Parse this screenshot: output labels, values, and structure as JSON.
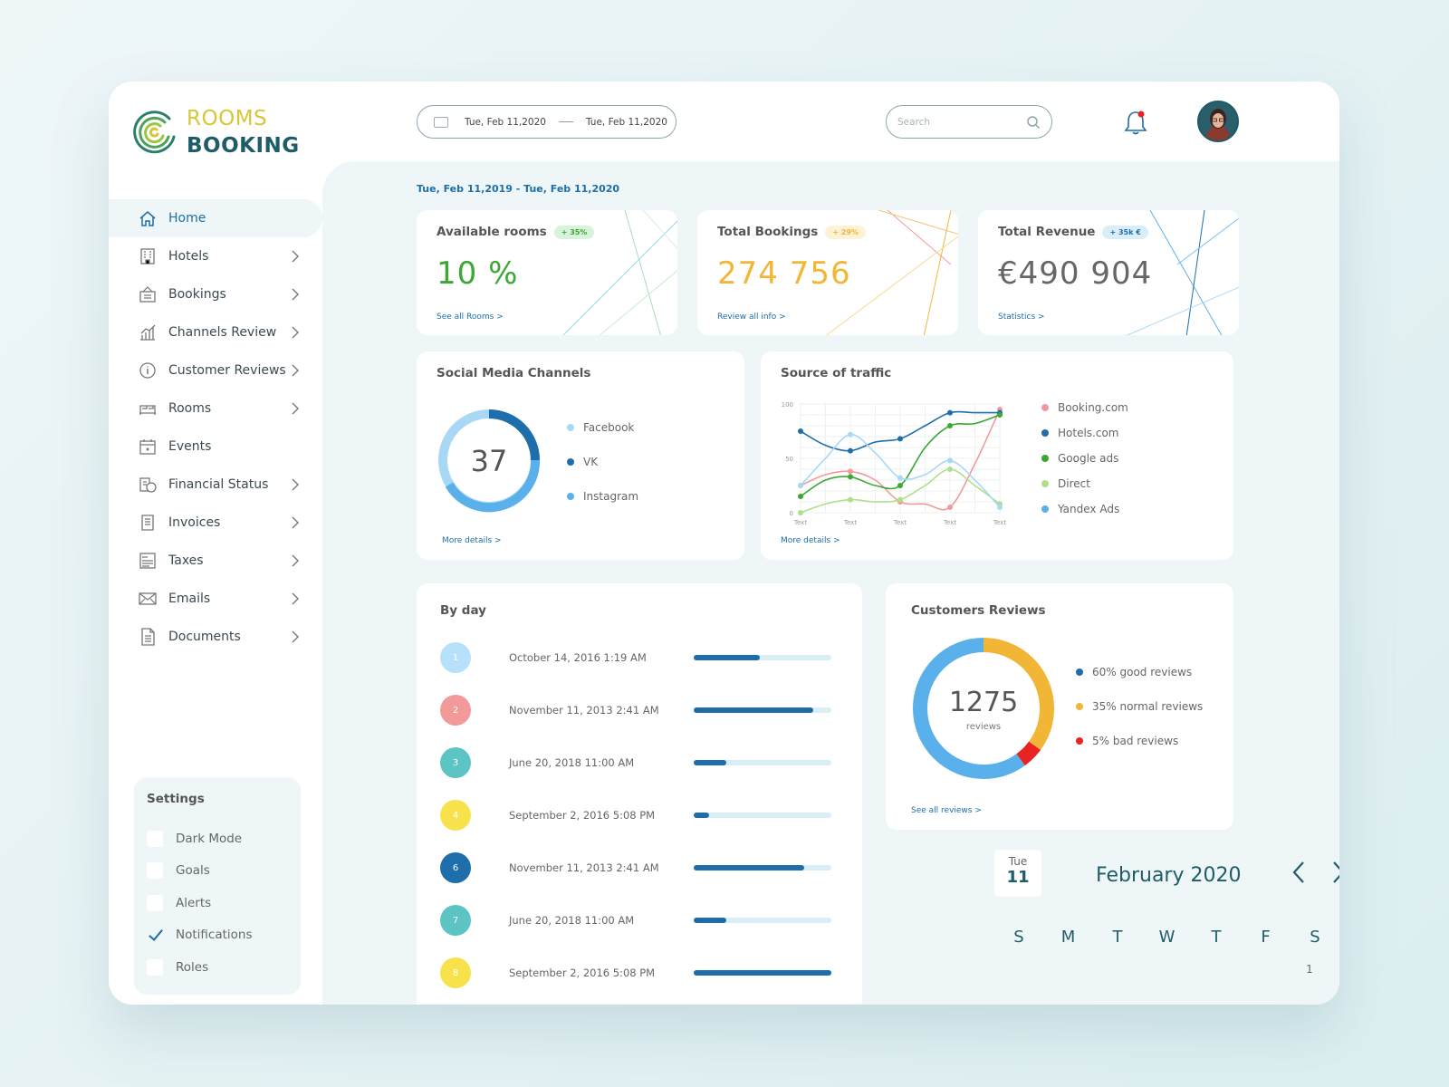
{
  "brand": {
    "line1": "ROOMS",
    "line2": "BOOKING"
  },
  "header": {
    "date_from": "Tue,  Feb 11,2020",
    "date_to": "Tue,  Feb 11,2020",
    "search_placeholder": "Search"
  },
  "sidebar": {
    "items": [
      {
        "label": "Home",
        "icon": "home-icon",
        "active": true
      },
      {
        "label": "Hotels",
        "icon": "hotel-icon"
      },
      {
        "label": "Bookings",
        "icon": "bookings-icon"
      },
      {
        "label": "Channels Review",
        "icon": "chart-icon"
      },
      {
        "label": "Customer Reviews",
        "icon": "info-icon"
      },
      {
        "label": "Rooms",
        "icon": "bed-icon"
      },
      {
        "label": "Events",
        "icon": "calendar-icon"
      },
      {
        "label": "Financial Status",
        "icon": "money-icon"
      },
      {
        "label": "Invoices",
        "icon": "invoice-icon"
      },
      {
        "label": "Taxes",
        "icon": "tax-icon"
      },
      {
        "label": "Emails",
        "icon": "mail-icon"
      },
      {
        "label": "Documents",
        "icon": "document-icon"
      }
    ]
  },
  "settings": {
    "title": "Settings",
    "options": [
      {
        "label": "Dark Mode",
        "checked": false
      },
      {
        "label": "Goals",
        "checked": false
      },
      {
        "label": "Alerts",
        "checked": false
      },
      {
        "label": "Notifications",
        "checked": true
      },
      {
        "label": "Roles",
        "checked": false
      }
    ]
  },
  "period": "Tue,  Feb 11,2019 - Tue,  Feb 11,2020",
  "kpis": [
    {
      "title": "Available rooms",
      "badge": "+ 35%",
      "value": "10 %",
      "link": "See all Rooms >",
      "color": "#3aa832",
      "badge_bg": "#d8f3dc",
      "badge_color": "#3aa832"
    },
    {
      "title": "Total Bookings",
      "badge": "+ 29%",
      "value": "274 756",
      "link": "Review all info >",
      "color": "#f2b637",
      "badge_bg": "#fdf1d6",
      "badge_color": "#f2b637"
    },
    {
      "title": "Total Revenue",
      "badge": "+ 35k €",
      "value": "€490 904",
      "link": "Statistics >",
      "color": "#666666",
      "badge_bg": "#d9eef6",
      "badge_color": "#1d6eaa"
    }
  ],
  "social": {
    "title": "Social Media Channels",
    "center_value": "37",
    "link": "More details >",
    "legend": [
      {
        "label": "Facebook",
        "color": "#a8d8f5"
      },
      {
        "label": "VK",
        "color": "#1d6eaa"
      },
      {
        "label": "Instagram",
        "color": "#5ab0ea"
      }
    ]
  },
  "traffic": {
    "title": "Source of traffic",
    "link": "More details >",
    "legend": [
      {
        "label": "Booking.com",
        "color": "#f29a9a"
      },
      {
        "label": "Hotels.com",
        "color": "#1d6eaa"
      },
      {
        "label": "Google ads",
        "color": "#3aa832"
      },
      {
        "label": "Direct",
        "color": "#aee08a"
      },
      {
        "label": "Yandex Ads",
        "color": "#5ab0ea"
      }
    ]
  },
  "chart_data": {
    "type": "line",
    "title": "Source of traffic",
    "x": [
      "Text",
      "",
      "Text",
      "",
      "Text",
      "",
      "Text",
      "",
      "Text"
    ],
    "ylim": [
      0,
      100
    ],
    "yticks": [
      0,
      50,
      100
    ],
    "grid": true,
    "series": [
      {
        "name": "Booking.com",
        "color": "#f29a9a",
        "values": [
          25,
          35,
          38,
          30,
          10,
          8,
          5,
          45,
          95
        ]
      },
      {
        "name": "Hotels.com",
        "color": "#1d6eaa",
        "values": [
          75,
          62,
          57,
          65,
          68,
          80,
          92,
          92,
          92
        ]
      },
      {
        "name": "Google ads",
        "color": "#3aa832",
        "values": [
          15,
          30,
          33,
          25,
          25,
          60,
          80,
          82,
          90
        ]
      },
      {
        "name": "Direct",
        "color": "#aee08a",
        "values": [
          0,
          8,
          12,
          10,
          12,
          25,
          40,
          25,
          8
        ]
      },
      {
        "name": "Yandex Ads",
        "color": "#a8d8f5",
        "values": [
          25,
          50,
          72,
          55,
          32,
          35,
          48,
          30,
          5
        ]
      }
    ]
  },
  "by_day": {
    "title": "By day",
    "rows": [
      {
        "n": "1",
        "date": "October 14, 2016 1:19 AM",
        "color": "#b7e1fa",
        "progress": 0.48
      },
      {
        "n": "2",
        "date": "November 11, 2013 2:41 AM",
        "color": "#f29a9a",
        "progress": 0.87
      },
      {
        "n": "3",
        "date": "June 20, 2018 11:00 AM",
        "color": "#5cc4c2",
        "progress": 0.24
      },
      {
        "n": "4",
        "date": "September 2, 2016 5:08 PM",
        "color": "#f8e24b",
        "progress": 0.11
      },
      {
        "n": "6",
        "date": "November 11, 2013 2:41 AM",
        "color": "#1d6eaa",
        "progress": 0.8
      },
      {
        "n": "7",
        "date": "June 20, 2018 11:00 AM",
        "color": "#5cc4c2",
        "progress": 0.24
      },
      {
        "n": "8",
        "date": "September 2, 2016 5:08 PM",
        "color": "#f8e24b",
        "progress": 1.0
      }
    ]
  },
  "reviews": {
    "title": "Customers Reviews",
    "center_value": "1275",
    "center_label": "reviews",
    "link": "See all reviews >",
    "legend": [
      {
        "label": "60% good reviews",
        "color": "#1d6eaa"
      },
      {
        "label": "35% normal reviews",
        "color": "#f2b637"
      },
      {
        "label": "5% bad reviews",
        "color": "#e82323"
      }
    ],
    "segments": [
      {
        "label": "good",
        "percent": 60,
        "color": "#5ab0ea"
      },
      {
        "label": "normal",
        "percent": 35,
        "color": "#f2b637"
      },
      {
        "label": "bad",
        "percent": 5,
        "color": "#e82323"
      }
    ]
  },
  "calendar": {
    "day_name": "Tue",
    "day_number": "11",
    "month": "February 2020",
    "weekdays": [
      "S",
      "M",
      "T",
      "W",
      "T",
      "F",
      "S"
    ],
    "first_day": "1"
  }
}
